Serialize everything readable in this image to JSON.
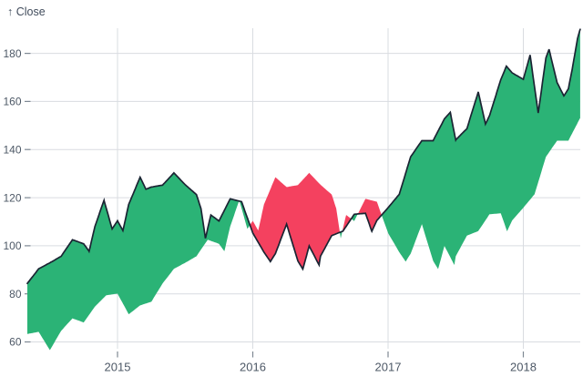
{
  "chart": {
    "y_axis_label": "↑ Close"
  },
  "chart_data": {
    "type": "area",
    "subtype": "difference-chart: dark line = close; filled band between line and comparison edge (close one year earlier); green where line is above band edge, red where below",
    "title": "",
    "xlabel": "",
    "ylabel": "Close",
    "y_axis_label_text": "↑ Close",
    "grid": true,
    "legend": false,
    "x_ticks": [
      2015,
      2016,
      2017,
      2018
    ],
    "x_tick_labels": [
      "2015",
      "2016",
      "2017",
      "2018"
    ],
    "y_ticks": [
      60,
      80,
      100,
      120,
      140,
      160,
      180
    ],
    "x_domain": [
      2014.333,
      2018.42
    ],
    "y_domain": [
      53,
      192
    ],
    "colors": {
      "positive_fill": "#2bb376",
      "negative_fill": "#f4415f",
      "line": "#1b2433",
      "grid": "#d9dce1",
      "tick_mark": "#7e8893",
      "tick_label": "#4d5866",
      "axis_title": "#414c5c",
      "background": "#ffffff"
    },
    "series": [
      {
        "name": "close-line",
        "points": [
          [
            2014.333,
            84.3
          ],
          [
            2014.417,
            90.4
          ],
          [
            2014.5,
            92.9
          ],
          [
            2014.583,
            95.6
          ],
          [
            2014.667,
            102.5
          ],
          [
            2014.75,
            100.8
          ],
          [
            2014.79,
            97.7
          ],
          [
            2014.833,
            108.0
          ],
          [
            2014.9,
            118.9
          ],
          [
            2014.96,
            107.0
          ],
          [
            2015.0,
            110.4
          ],
          [
            2015.04,
            106.3
          ],
          [
            2015.083,
            117.2
          ],
          [
            2015.167,
            128.5
          ],
          [
            2015.21,
            123.5
          ],
          [
            2015.25,
            124.4
          ],
          [
            2015.333,
            125.2
          ],
          [
            2015.417,
            130.3
          ],
          [
            2015.5,
            125.4
          ],
          [
            2015.583,
            121.3
          ],
          [
            2015.617,
            115.5
          ],
          [
            2015.65,
            103.1
          ],
          [
            2015.69,
            112.8
          ],
          [
            2015.75,
            110.3
          ],
          [
            2015.833,
            119.5
          ],
          [
            2015.917,
            118.3
          ],
          [
            2016.0,
            105.3
          ],
          [
            2016.083,
            97.3
          ],
          [
            2016.13,
            93.4
          ],
          [
            2016.167,
            96.7
          ],
          [
            2016.25,
            109.0
          ],
          [
            2016.333,
            93.7
          ],
          [
            2016.37,
            90.3
          ],
          [
            2016.417,
            99.9
          ],
          [
            2016.49,
            92.0
          ],
          [
            2016.5,
            95.6
          ],
          [
            2016.583,
            104.2
          ],
          [
            2016.667,
            106.1
          ],
          [
            2016.75,
            113.1
          ],
          [
            2016.833,
            113.5
          ],
          [
            2016.88,
            106.0
          ],
          [
            2016.917,
            110.5
          ],
          [
            2017.0,
            115.8
          ],
          [
            2017.083,
            121.4
          ],
          [
            2017.167,
            137.0
          ],
          [
            2017.25,
            143.7
          ],
          [
            2017.333,
            143.7
          ],
          [
            2017.417,
            152.8
          ],
          [
            2017.46,
            155.5
          ],
          [
            2017.5,
            144.0
          ],
          [
            2017.583,
            148.7
          ],
          [
            2017.667,
            164.0
          ],
          [
            2017.72,
            150.6
          ],
          [
            2017.75,
            154.1
          ],
          [
            2017.833,
            169.0
          ],
          [
            2017.875,
            174.7
          ],
          [
            2017.917,
            171.9
          ],
          [
            2018.0,
            169.2
          ],
          [
            2018.05,
            179.3
          ],
          [
            2018.11,
            155.2
          ],
          [
            2018.167,
            178.1
          ],
          [
            2018.19,
            181.7
          ],
          [
            2018.25,
            167.8
          ],
          [
            2018.3,
            162.3
          ],
          [
            2018.333,
            165.3
          ],
          [
            2018.36,
            173.0
          ],
          [
            2018.4,
            186.0
          ],
          [
            2018.42,
            190.0
          ]
        ]
      },
      {
        "name": "band-edge-close-one-year-earlier",
        "points": [
          [
            2014.333,
            63.3
          ],
          [
            2014.417,
            64.2
          ],
          [
            2014.5,
            56.6
          ],
          [
            2014.583,
            64.6
          ],
          [
            2014.667,
            69.8
          ],
          [
            2014.75,
            68.1
          ],
          [
            2014.833,
            74.7
          ],
          [
            2014.917,
            79.4
          ],
          [
            2015.0,
            80.1
          ],
          [
            2015.083,
            71.5
          ],
          [
            2015.167,
            75.2
          ],
          [
            2015.25,
            76.7
          ],
          [
            2015.333,
            84.3
          ],
          [
            2015.417,
            90.4
          ],
          [
            2015.5,
            92.9
          ],
          [
            2015.583,
            95.6
          ],
          [
            2015.667,
            102.5
          ],
          [
            2015.75,
            100.8
          ],
          [
            2015.79,
            97.7
          ],
          [
            2015.833,
            108.0
          ],
          [
            2015.9,
            118.9
          ],
          [
            2015.96,
            107.0
          ],
          [
            2016.0,
            110.4
          ],
          [
            2016.04,
            106.3
          ],
          [
            2016.083,
            117.2
          ],
          [
            2016.167,
            128.5
          ],
          [
            2016.25,
            124.4
          ],
          [
            2016.333,
            125.2
          ],
          [
            2016.417,
            130.3
          ],
          [
            2016.5,
            125.4
          ],
          [
            2016.583,
            121.3
          ],
          [
            2016.617,
            115.5
          ],
          [
            2016.65,
            103.1
          ],
          [
            2016.69,
            112.8
          ],
          [
            2016.75,
            110.3
          ],
          [
            2016.833,
            119.5
          ],
          [
            2016.917,
            118.3
          ],
          [
            2017.0,
            105.3
          ],
          [
            2017.083,
            97.3
          ],
          [
            2017.13,
            93.4
          ],
          [
            2017.167,
            96.7
          ],
          [
            2017.25,
            109.0
          ],
          [
            2017.333,
            93.7
          ],
          [
            2017.37,
            90.3
          ],
          [
            2017.417,
            99.9
          ],
          [
            2017.49,
            92.0
          ],
          [
            2017.5,
            95.6
          ],
          [
            2017.583,
            104.2
          ],
          [
            2017.667,
            106.1
          ],
          [
            2017.75,
            113.1
          ],
          [
            2017.833,
            113.5
          ],
          [
            2017.88,
            106.0
          ],
          [
            2017.917,
            110.5
          ],
          [
            2018.0,
            115.8
          ],
          [
            2018.083,
            121.4
          ],
          [
            2018.167,
            137.0
          ],
          [
            2018.25,
            143.7
          ],
          [
            2018.333,
            143.7
          ],
          [
            2018.417,
            152.8
          ],
          [
            2018.42,
            153.0
          ]
        ]
      }
    ]
  }
}
